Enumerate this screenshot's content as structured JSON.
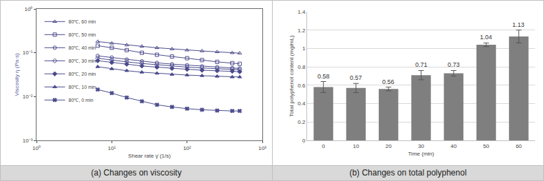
{
  "chart_data": [
    {
      "type": "line",
      "caption": "(a) Changes on viscosity",
      "x_label": "Shear rate γ̇ (1/s)",
      "y_label": "Viscosity η (Pa·s)",
      "log": true,
      "grid": false,
      "legend": "top-left",
      "xlim": [
        1,
        1000
      ],
      "ylim": [
        0.001,
        1
      ],
      "xticks": [
        {
          "value": 1,
          "label": "10⁰"
        },
        {
          "value": 10,
          "label": "10¹"
        },
        {
          "value": 100,
          "label": "10²"
        },
        {
          "value": 1000,
          "label": "10³"
        }
      ],
      "yticks": [
        {
          "value": 0.001,
          "label": "10⁻³"
        },
        {
          "value": 0.01,
          "label": "10⁻²"
        },
        {
          "value": 0.1,
          "label": "10⁻¹"
        },
        {
          "value": 1,
          "label": "10⁰"
        }
      ],
      "x": [
        6.5,
        10,
        15.8,
        25.1,
        39.8,
        63.1,
        100,
        158,
        251,
        398,
        500
      ],
      "series": [
        {
          "name": "80℃, 60 min",
          "color": "#4a4a8c",
          "marker": "triangle-up-open",
          "values": [
            0.18,
            0.165,
            0.15,
            0.14,
            0.13,
            0.122,
            0.115,
            0.11,
            0.105,
            0.1,
            0.098
          ]
        },
        {
          "name": "80℃, 50 min",
          "color": "#4a4a8c",
          "marker": "square-open",
          "values": [
            0.145,
            0.13,
            0.115,
            0.1,
            0.09,
            0.082,
            0.075,
            0.068,
            0.062,
            0.058,
            0.056
          ]
        },
        {
          "name": "80℃, 40 min",
          "color": "#4a4a8c",
          "marker": "circle-open",
          "values": [
            0.085,
            0.078,
            0.07,
            0.064,
            0.059,
            0.055,
            0.052,
            0.049,
            0.047,
            0.045,
            0.044
          ]
        },
        {
          "name": "80℃, 30 min",
          "color": "#4a4a8c",
          "marker": "diamond-open",
          "values": [
            0.075,
            0.068,
            0.062,
            0.057,
            0.053,
            0.05,
            0.047,
            0.045,
            0.043,
            0.042,
            0.041
          ]
        },
        {
          "name": "80℃, 20 min",
          "color": "#4a4a8c",
          "marker": "diamond",
          "values": [
            0.066,
            0.06,
            0.055,
            0.05,
            0.047,
            0.044,
            0.042,
            0.04,
            0.039,
            0.038,
            0.037
          ]
        },
        {
          "name": "80℃, 10 min",
          "color": "#4a4a8c",
          "marker": "triangle-up",
          "values": [
            0.048,
            0.043,
            0.039,
            0.036,
            0.034,
            0.032,
            0.031,
            0.03,
            0.029,
            0.028,
            0.028
          ]
        },
        {
          "name": "80℃, 0 min",
          "color": "#4a4a8c",
          "marker": "x",
          "values": [
            0.0145,
            0.012,
            0.0095,
            0.0078,
            0.0065,
            0.0058,
            0.0053,
            0.005,
            0.0048,
            0.0047,
            0.0047
          ]
        }
      ]
    },
    {
      "type": "bar",
      "caption": "(b) Changes on total polyphenol",
      "x_label": "Time (min)",
      "y_label": "Total polyphenol content (mg/mL)",
      "grid": true,
      "data_labels": true,
      "color": "#7f7f7f",
      "categories": [
        "0",
        "10",
        "20",
        "30",
        "40",
        "50",
        "60"
      ],
      "values": [
        0.58,
        0.57,
        0.56,
        0.71,
        0.73,
        1.04,
        1.13
      ],
      "errors": [
        0.06,
        0.05,
        0.02,
        0.05,
        0.03,
        0.02,
        0.07
      ],
      "ylim": [
        0,
        1.4
      ],
      "yticks": [
        0,
        0.2,
        0.4,
        0.6,
        0.8,
        1,
        1.2,
        1.4
      ]
    }
  ]
}
